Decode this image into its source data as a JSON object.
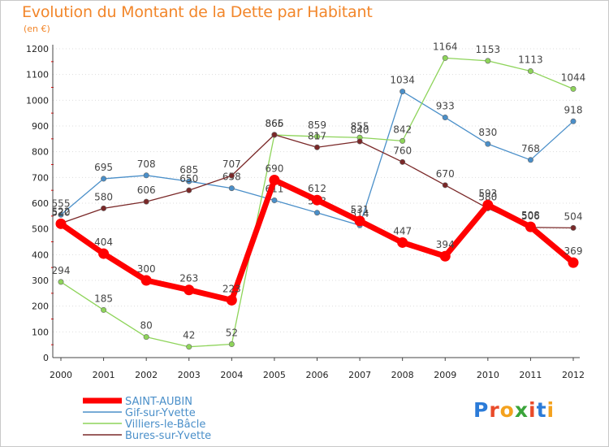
{
  "title": "Evolution du Montant de la Dette par Habitant",
  "subtitle": "(en €)",
  "logo": {
    "letters": [
      "P",
      "r",
      "o",
      "x",
      "i",
      "t",
      "i"
    ],
    "colors": [
      "#2b7bd8",
      "#e94b2a",
      "#f4a21e",
      "#3aa43a",
      "#e94b2a",
      "#2b7bd8",
      "#f4a21e"
    ]
  },
  "chart_data": {
    "type": "line",
    "categories": [
      "2000",
      "2001",
      "2002",
      "2003",
      "2004",
      "2005",
      "2006",
      "2007",
      "2008",
      "2009",
      "2010",
      "2011",
      "2012"
    ],
    "ylim": [
      0,
      1200
    ],
    "yticks": [
      "0",
      "100",
      "200",
      "300",
      "400",
      "500",
      "600",
      "700",
      "800",
      "900",
      "1000",
      "1100",
      "1200"
    ],
    "grid": "horizontal dotted",
    "legend": "bottom-left",
    "series": [
      {
        "name": "Gif-sur-Yvette",
        "color": "#4a8fc9",
        "values": [
          555,
          695,
          708,
          685,
          658,
          611,
          563,
          514,
          1034,
          933,
          830,
          768,
          918
        ],
        "labels": [
          "555",
          "695",
          "708",
          "685",
          "658",
          "611",
          "563",
          "514",
          "1034",
          "933",
          "830",
          "768",
          "918"
        ]
      },
      {
        "name": "Villiers-le-Bâcle",
        "color": "#8ed45a",
        "values": [
          294,
          185,
          80,
          42,
          52,
          865,
          859,
          855,
          842,
          1164,
          1153,
          1113,
          1044
        ],
        "labels": [
          "294",
          "185",
          "80",
          "42",
          "52",
          "865",
          "859",
          "855",
          "842",
          "1164",
          "1153",
          "1113",
          "1044"
        ]
      },
      {
        "name": "Bures-sur-Yvette",
        "color": "#7a2828",
        "values": [
          522,
          580,
          606,
          650,
          707,
          866,
          817,
          840,
          760,
          670,
          580,
          506,
          504
        ],
        "labels": [
          "522",
          "580",
          "606",
          "650",
          "707",
          "866",
          "817",
          "840",
          "760",
          "670",
          "580",
          "506",
          "504"
        ]
      },
      {
        "name": "SAINT-AUBIN",
        "color": "#ff0000",
        "values": [
          520,
          404,
          300,
          263,
          223,
          690,
          612,
          531,
          447,
          394,
          593,
          508,
          369
        ],
        "labels": [
          "520",
          "404",
          "300",
          "263",
          "223",
          "690",
          "612",
          "531",
          "447",
          "394",
          "593",
          "508",
          "369"
        ]
      }
    ],
    "legend_order": [
      "SAINT-AUBIN",
      "Gif-sur-Yvette",
      "Villiers-le-Bâcle",
      "Bures-sur-Yvette"
    ]
  }
}
